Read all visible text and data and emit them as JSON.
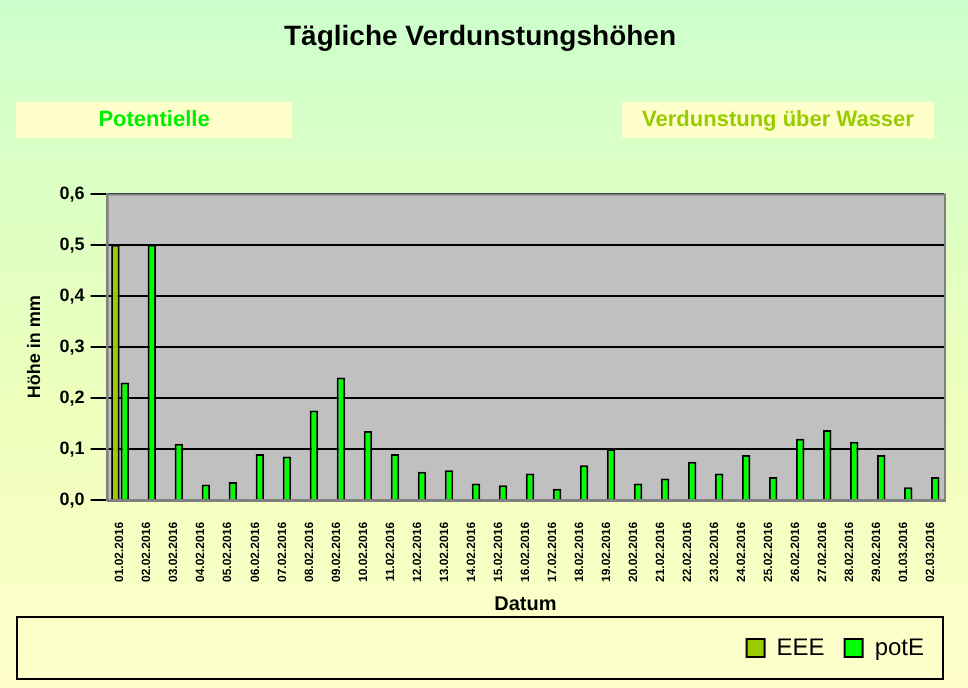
{
  "chart_data": {
    "type": "bar",
    "title": "Tägliche Verdunstungshöhen",
    "xlabel": "Datum",
    "ylabel": "Höhe in mm",
    "annotations": [
      "Potentielle",
      "Verdunstung über Wasser"
    ],
    "categories": [
      "01.02.2016",
      "02.02.2016",
      "03.02.2016",
      "04.02.2016",
      "05.02.2016",
      "06.02.2016",
      "07.02.2016",
      "08.02.2016",
      "09.02.2016",
      "10.02.2016",
      "11.02.2016",
      "12.02.2016",
      "13.02.2016",
      "14.02.2016",
      "15.02.2016",
      "16.02.2016",
      "17.02.2016",
      "18.02.2016",
      "19.02.2016",
      "20.02.2016",
      "21.02.2016",
      "22.02.2016",
      "23.02.2016",
      "24.02.2016",
      "25.02.2016",
      "26.02.2016",
      "27.02.2016",
      "28.02.2016",
      "29.02.2016",
      "01.03.2016",
      "02.03.2016"
    ],
    "series": [
      {
        "name": "EEE",
        "color": "#99cc00",
        "values": [
          0.5,
          null,
          null,
          null,
          null,
          null,
          null,
          null,
          null,
          null,
          null,
          null,
          null,
          null,
          null,
          null,
          null,
          null,
          null,
          null,
          null,
          null,
          null,
          null,
          null,
          null,
          null,
          null,
          null,
          null,
          null
        ]
      },
      {
        "name": "potE",
        "color": "#00ff00",
        "values": [
          0.23,
          0.5,
          0.11,
          0.03,
          0.035,
          0.09,
          0.085,
          0.175,
          0.24,
          0.135,
          0.09,
          0.055,
          0.058,
          0.032,
          0.029,
          0.052,
          0.022,
          0.068,
          0.1,
          0.032,
          0.042,
          0.075,
          0.052,
          0.088,
          0.045,
          0.12,
          0.137,
          0.114,
          0.088,
          0.025,
          0.045
        ]
      }
    ],
    "ylim": [
      0,
      0.6
    ],
    "yticks": [
      {
        "value": 0,
        "label": "0,0"
      },
      {
        "value": 0.1,
        "label": "0,1"
      },
      {
        "value": 0.2,
        "label": "0,2"
      },
      {
        "value": 0.3,
        "label": "0,3"
      },
      {
        "value": 0.4,
        "label": "0,4"
      },
      {
        "value": 0.5,
        "label": "0,5"
      },
      {
        "value": 0.6,
        "label": "0,6"
      }
    ],
    "grid": "y",
    "legend": "bottom right"
  }
}
